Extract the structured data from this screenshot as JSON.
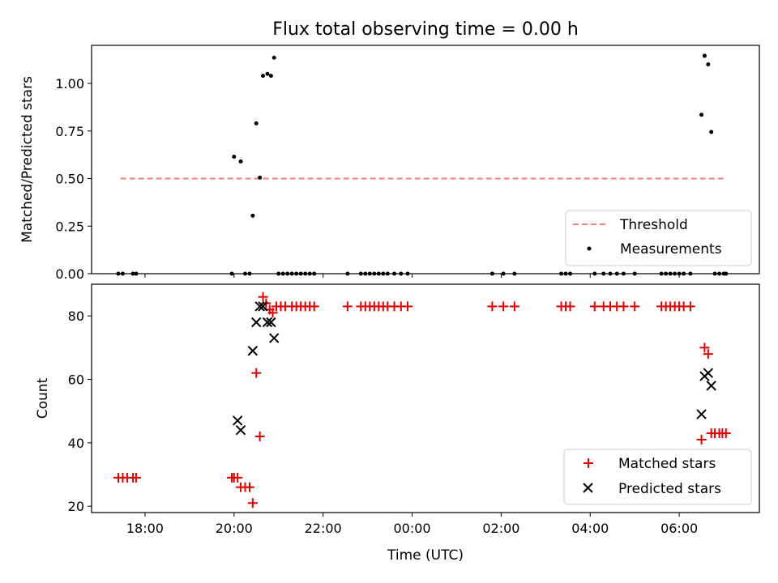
{
  "chart_data": [
    {
      "type": "scatter",
      "title": "Flux total observing time = 0.00 h",
      "ylabel": "Matched/Predicted stars",
      "xlabel": "",
      "xlim": [
        16.8,
        31.8
      ],
      "ylim": [
        0.0,
        1.2
      ],
      "yticks": [
        "0.00",
        "0.25",
        "0.50",
        "0.75",
        "1.00"
      ],
      "legend_position": "lower-right",
      "threshold": {
        "name": "Threshold",
        "value": 0.5,
        "x_range": [
          17.45,
          31.05
        ],
        "color": "#f08080"
      },
      "series": [
        {
          "name": "Measurements",
          "color": "#000000",
          "points": [
            [
              17.4,
              0
            ],
            [
              17.5,
              0
            ],
            [
              17.73,
              0
            ],
            [
              17.8,
              0
            ],
            [
              19.95,
              0
            ],
            [
              20.0,
              0.615
            ],
            [
              20.15,
              0.59
            ],
            [
              20.25,
              0
            ],
            [
              20.35,
              0
            ],
            [
              20.42,
              0.305
            ],
            [
              20.5,
              0.79
            ],
            [
              20.58,
              0.505
            ],
            [
              20.65,
              1.04
            ],
            [
              20.75,
              1.05
            ],
            [
              20.83,
              1.04
            ],
            [
              20.9,
              1.135
            ],
            [
              21.0,
              0
            ],
            [
              21.1,
              0
            ],
            [
              21.2,
              0
            ],
            [
              21.3,
              0
            ],
            [
              21.4,
              0
            ],
            [
              21.5,
              0
            ],
            [
              21.6,
              0
            ],
            [
              21.7,
              0
            ],
            [
              21.8,
              0
            ],
            [
              22.55,
              0
            ],
            [
              22.85,
              0
            ],
            [
              22.95,
              0
            ],
            [
              23.05,
              0
            ],
            [
              23.15,
              0
            ],
            [
              23.25,
              0
            ],
            [
              23.35,
              0
            ],
            [
              23.45,
              0
            ],
            [
              23.6,
              0
            ],
            [
              23.75,
              0
            ],
            [
              23.9,
              0
            ],
            [
              25.8,
              0
            ],
            [
              26.05,
              0
            ],
            [
              26.3,
              0
            ],
            [
              27.35,
              0
            ],
            [
              27.45,
              0
            ],
            [
              27.55,
              0
            ],
            [
              28.1,
              0
            ],
            [
              28.3,
              0
            ],
            [
              28.45,
              0
            ],
            [
              28.6,
              0
            ],
            [
              28.75,
              0
            ],
            [
              29.0,
              0
            ],
            [
              29.6,
              0
            ],
            [
              29.7,
              0
            ],
            [
              29.8,
              0
            ],
            [
              29.9,
              0
            ],
            [
              30.0,
              0
            ],
            [
              30.1,
              0
            ],
            [
              30.25,
              0
            ],
            [
              30.5,
              0.835
            ],
            [
              30.57,
              1.145
            ],
            [
              30.65,
              1.1
            ],
            [
              30.72,
              0.745
            ],
            [
              30.8,
              0
            ],
            [
              30.9,
              0
            ],
            [
              31.0,
              0
            ],
            [
              31.05,
              0
            ]
          ]
        }
      ]
    },
    {
      "type": "scatter",
      "title": "",
      "ylabel": "Count",
      "xlabel": "Time (UTC)",
      "xlim": [
        16.8,
        31.8
      ],
      "ylim": [
        18,
        90
      ],
      "yticks": [
        "20",
        "40",
        "60",
        "80"
      ],
      "xticks": [
        {
          "value": 18,
          "label": "18:00"
        },
        {
          "value": 20,
          "label": "20:00"
        },
        {
          "value": 22,
          "label": "22:00"
        },
        {
          "value": 24,
          "label": "00:00"
        },
        {
          "value": 26,
          "label": "02:00"
        },
        {
          "value": 28,
          "label": "04:00"
        },
        {
          "value": 30,
          "label": "06:00"
        }
      ],
      "legend_position": "lower-right",
      "series": [
        {
          "name": "Matched stars",
          "marker": "plus",
          "color": "#e00000",
          "points": [
            [
              17.4,
              29
            ],
            [
              17.5,
              29
            ],
            [
              17.6,
              29
            ],
            [
              17.73,
              29
            ],
            [
              17.8,
              29
            ],
            [
              19.95,
              29
            ],
            [
              20.0,
              29
            ],
            [
              20.08,
              29
            ],
            [
              20.15,
              26
            ],
            [
              20.25,
              26
            ],
            [
              20.35,
              26
            ],
            [
              20.42,
              21
            ],
            [
              20.5,
              62
            ],
            [
              20.58,
              42
            ],
            [
              20.65,
              86
            ],
            [
              20.72,
              84
            ],
            [
              20.8,
              82
            ],
            [
              20.87,
              81
            ],
            [
              20.95,
              83
            ],
            [
              21.05,
              83
            ],
            [
              21.15,
              83
            ],
            [
              21.3,
              83
            ],
            [
              21.4,
              83
            ],
            [
              21.5,
              83
            ],
            [
              21.6,
              83
            ],
            [
              21.7,
              83
            ],
            [
              21.8,
              83
            ],
            [
              22.55,
              83
            ],
            [
              22.85,
              83
            ],
            [
              22.95,
              83
            ],
            [
              23.05,
              83
            ],
            [
              23.15,
              83
            ],
            [
              23.25,
              83
            ],
            [
              23.35,
              83
            ],
            [
              23.45,
              83
            ],
            [
              23.6,
              83
            ],
            [
              23.75,
              83
            ],
            [
              23.9,
              83
            ],
            [
              25.8,
              83
            ],
            [
              26.05,
              83
            ],
            [
              26.3,
              83
            ],
            [
              27.35,
              83
            ],
            [
              27.45,
              83
            ],
            [
              27.55,
              83
            ],
            [
              28.1,
              83
            ],
            [
              28.3,
              83
            ],
            [
              28.45,
              83
            ],
            [
              28.6,
              83
            ],
            [
              28.75,
              83
            ],
            [
              29.0,
              83
            ],
            [
              29.6,
              83
            ],
            [
              29.7,
              83
            ],
            [
              29.8,
              83
            ],
            [
              29.9,
              83
            ],
            [
              30.0,
              83
            ],
            [
              30.1,
              83
            ],
            [
              30.25,
              83
            ],
            [
              30.5,
              41
            ],
            [
              30.57,
              70
            ],
            [
              30.65,
              68
            ],
            [
              30.72,
              43
            ],
            [
              30.8,
              43
            ],
            [
              30.9,
              43
            ],
            [
              30.97,
              43
            ],
            [
              31.05,
              43
            ]
          ]
        },
        {
          "name": "Predicted stars",
          "marker": "x",
          "color": "#000000",
          "points": [
            [
              20.08,
              47
            ],
            [
              20.15,
              44
            ],
            [
              20.42,
              69
            ],
            [
              20.5,
              78
            ],
            [
              20.58,
              83
            ],
            [
              20.65,
              83
            ],
            [
              20.75,
              78
            ],
            [
              20.83,
              78
            ],
            [
              20.9,
              73
            ],
            [
              30.5,
              49
            ],
            [
              30.57,
              61
            ],
            [
              30.65,
              62
            ],
            [
              30.72,
              58
            ]
          ]
        }
      ]
    }
  ]
}
